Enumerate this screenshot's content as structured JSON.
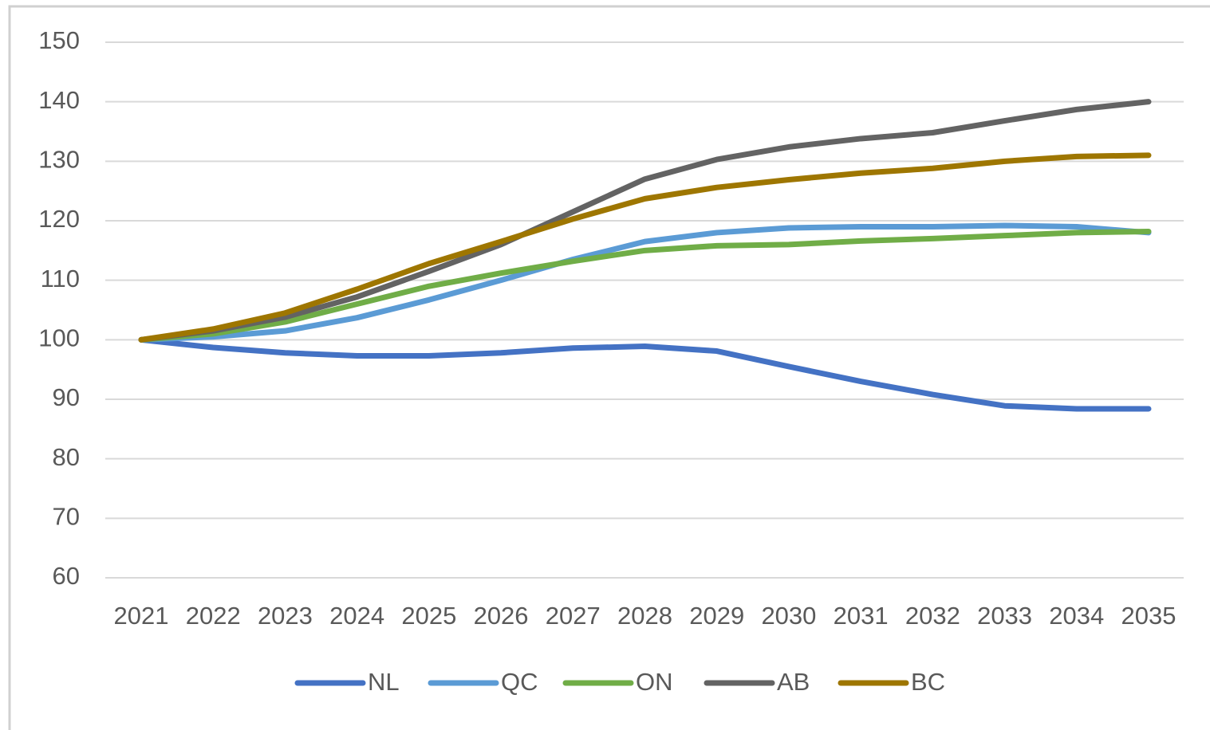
{
  "chart_data": {
    "type": "line",
    "categories": [
      "2021",
      "2022",
      "2023",
      "2024",
      "2025",
      "2026",
      "2027",
      "2028",
      "2029",
      "2030",
      "2031",
      "2032",
      "2033",
      "2034",
      "2035"
    ],
    "series": [
      {
        "name": "NL",
        "color": "#4472c4",
        "values": [
          100,
          98.7,
          97.8,
          97.3,
          97.3,
          97.8,
          98.6,
          98.9,
          98.1,
          95.5,
          93,
          90.8,
          88.9,
          88.4,
          88.4
        ]
      },
      {
        "name": "QC",
        "color": "#5b9bd5",
        "values": [
          100,
          100.5,
          101.5,
          103.7,
          106.7,
          110,
          113.5,
          116.5,
          118,
          118.8,
          119,
          119,
          119.2,
          119,
          118
        ]
      },
      {
        "name": "ON",
        "color": "#70ad47",
        "values": [
          100,
          101,
          103,
          106,
          109,
          111.2,
          113.2,
          115,
          115.8,
          116,
          116.6,
          117,
          117.5,
          118,
          118.2
        ]
      },
      {
        "name": "AB",
        "color": "#636363",
        "values": [
          100,
          101.5,
          103.8,
          107.2,
          111.5,
          116,
          121.5,
          127,
          130.3,
          132.4,
          133.8,
          134.8,
          136.8,
          138.7,
          140
        ]
      },
      {
        "name": "BC",
        "color": "#9e7600",
        "values": [
          100,
          101.8,
          104.5,
          108.5,
          112.8,
          116.5,
          120.3,
          123.7,
          125.6,
          126.9,
          128,
          128.8,
          130,
          130.8,
          131
        ]
      }
    ],
    "ylim": [
      60,
      150
    ],
    "yticks": [
      60,
      70,
      80,
      90,
      100,
      110,
      120,
      130,
      140,
      150
    ],
    "grid": true,
    "legend": "bottom"
  }
}
